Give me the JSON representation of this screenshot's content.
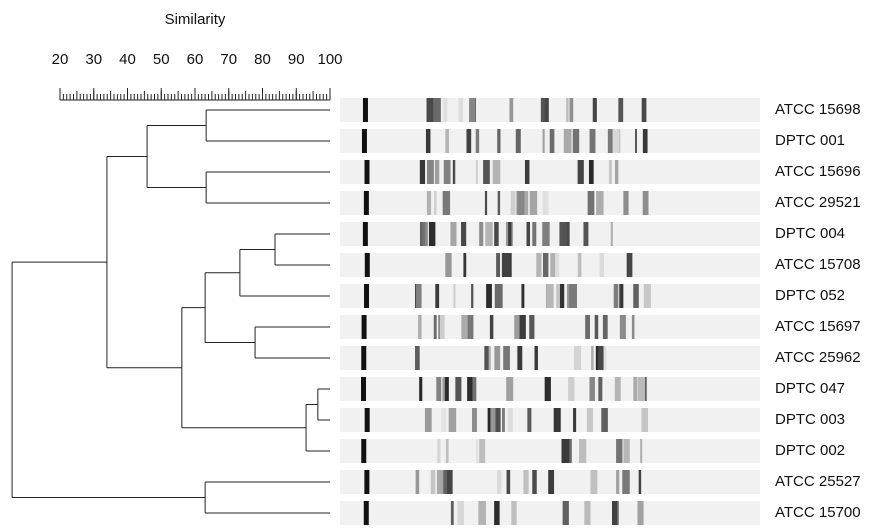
{
  "scale": {
    "title": "Similarity",
    "ticks": [
      20,
      30,
      40,
      50,
      60,
      70,
      80,
      90,
      100
    ]
  },
  "tree": {
    "similarity": 5.8,
    "children": [
      {
        "similarity": 33.9,
        "children": [
          {
            "similarity": 45.8,
            "children": [
              {
                "similarity": 63.3,
                "children": [
                  {
                    "label": "ATCC 15698"
                  },
                  {
                    "label": "DPTC 001"
                  }
                ]
              },
              {
                "similarity": 63.3,
                "children": [
                  {
                    "label": "ATCC 15696"
                  },
                  {
                    "label": "ATCC 29521"
                  }
                ]
              }
            ]
          },
          {
            "similarity": 56.1,
            "children": [
              {
                "similarity": 63,
                "children": [
                  {
                    "similarity": 73.3,
                    "children": [
                      {
                        "similarity": 83.7,
                        "children": [
                          {
                            "label": "DPTC 004"
                          },
                          {
                            "label": "ATCC 15708"
                          }
                        ]
                      },
                      {
                        "label": "DPTC 052"
                      }
                    ]
                  },
                  {
                    "similarity": 77.8,
                    "children": [
                      {
                        "label": "ATCC 15697"
                      },
                      {
                        "label": "ATCC 25962"
                      }
                    ]
                  }
                ]
              },
              {
                "similarity": 92.9,
                "children": [
                  {
                    "similarity": 96.4,
                    "children": [
                      {
                        "label": "DPTC 047"
                      },
                      {
                        "label": "DPTC 003"
                      }
                    ]
                  },
                  {
                    "label": "DPTC 002"
                  }
                ]
              }
            ]
          }
        ]
      },
      {
        "similarity": 63,
        "children": [
          {
            "label": "ATCC 25527"
          },
          {
            "label": "ATCC 15700"
          }
        ]
      }
    ]
  }
}
